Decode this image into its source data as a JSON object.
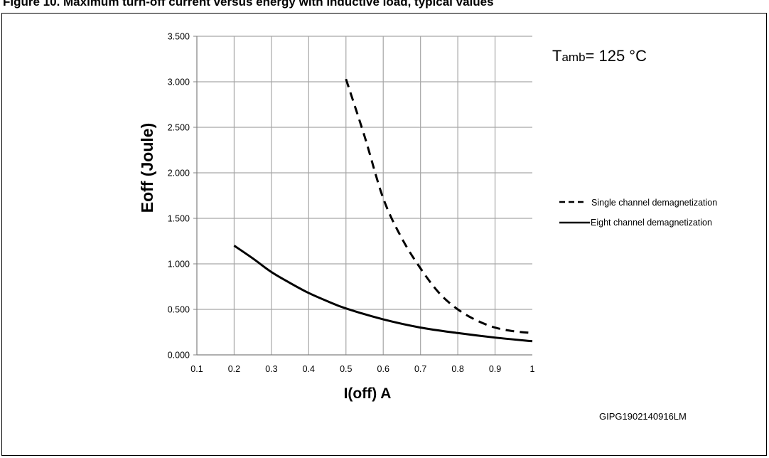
{
  "page": {
    "figure_title": "Figure 10. Maximum turn-off current versus energy with inductive load, typical values",
    "figure_id": "GIPG1902140916LM"
  },
  "chart_data": {
    "type": "line",
    "title": "",
    "xlabel": "I(off) A",
    "ylabel": "Eoff (Joule)",
    "xlim": [
      0.1,
      1
    ],
    "ylim": [
      0,
      3.5
    ],
    "x_ticks": [
      "0.1",
      "0.2",
      "0.3",
      "0.4",
      "0.5",
      "0.6",
      "0.7",
      "0.8",
      "0.9",
      "1"
    ],
    "y_ticks": [
      "0.000",
      "0.500",
      "1.000",
      "1.500",
      "2.000",
      "2.500",
      "3.000",
      "3.500"
    ],
    "grid": true,
    "legend_position": "right",
    "annotation": {
      "prefix": "T",
      "subscript": "amb",
      "value": "= 125 °C"
    },
    "series": [
      {
        "name": "Single channel demagnetization",
        "style": "dashed",
        "color": "#000000",
        "x": [
          0.5,
          0.55,
          0.6,
          0.65,
          0.7,
          0.75,
          0.8,
          0.85,
          0.9,
          0.95,
          1.0
        ],
        "y": [
          3.03,
          2.4,
          1.72,
          1.28,
          0.95,
          0.68,
          0.5,
          0.38,
          0.3,
          0.26,
          0.24
        ]
      },
      {
        "name": "Eight channel demagnetization",
        "style": "solid",
        "color": "#000000",
        "x": [
          0.2,
          0.25,
          0.3,
          0.35,
          0.4,
          0.45,
          0.5,
          0.6,
          0.7,
          0.8,
          0.9,
          1.0
        ],
        "y": [
          1.2,
          1.06,
          0.91,
          0.79,
          0.68,
          0.59,
          0.51,
          0.39,
          0.3,
          0.24,
          0.19,
          0.15
        ]
      }
    ]
  }
}
